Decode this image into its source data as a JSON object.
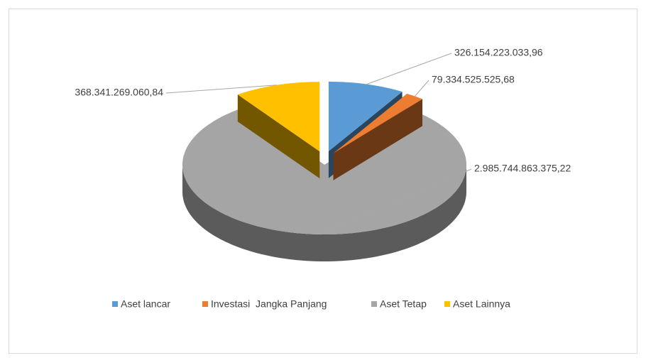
{
  "chart_data": {
    "type": "pie",
    "categories": [
      "Aset lancar",
      "Investasi  Jangka Panjang",
      "Aset Tetap",
      "Aset Lainnya"
    ],
    "values": [
      326154223033.96,
      79334525525.68,
      2985744863375.22,
      368341269060.84
    ],
    "value_labels": [
      "326.154.223.033,96",
      "79.334.525.525,68",
      "2.985.744.863.375,22",
      "368.341.269.060,84"
    ],
    "colors": [
      "#5b9bd5",
      "#ed7d31",
      "#a5a5a5",
      "#ffc000"
    ],
    "legend": "bottom"
  }
}
